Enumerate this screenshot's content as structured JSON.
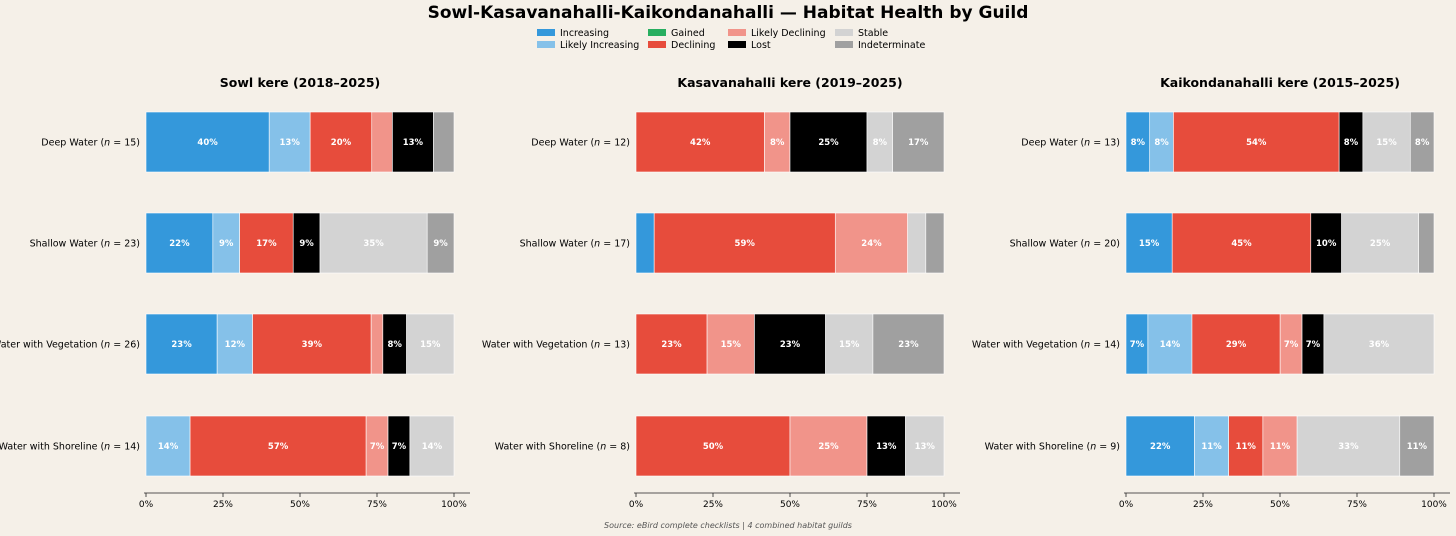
{
  "title": "Sowl-Kasavanahalli-Kaikondanahalli — Habitat Health by Guild",
  "source": "Source: eBird complete checklists  |  4 combined habitat guilds",
  "legend": [
    {
      "key": "increasing",
      "label": "Increasing",
      "color": "#3498db"
    },
    {
      "key": "likely_increasing",
      "label": "Likely Increasing",
      "color": "#85c1e9"
    },
    {
      "key": "gained",
      "label": "Gained",
      "color": "#27ae60"
    },
    {
      "key": "declining",
      "label": "Declining",
      "color": "#e74c3c"
    },
    {
      "key": "likely_declining",
      "label": "Likely Declining",
      "color": "#f1948a"
    },
    {
      "key": "lost",
      "label": "Lost",
      "color": "#000000"
    },
    {
      "key": "stable",
      "label": "Stable",
      "color": "#d3d3d3"
    },
    {
      "key": "indeterminate",
      "label": "Indeterminate",
      "color": "#a0a0a0"
    }
  ],
  "chart_data": {
    "type": "bar",
    "orientation": "horizontal",
    "stacked": true,
    "percent_scale": true,
    "xlim": [
      0,
      100
    ],
    "xticks": [
      "0%",
      "25%",
      "50%",
      "75%",
      "100%"
    ],
    "panels": [
      {
        "title": "Sowl kere (2018–2025)",
        "rows": [
          {
            "label": "Deep Water",
            "n": 15,
            "segments": {
              "increasing": 40,
              "likely_increasing": 13.3,
              "declining": 20,
              "likely_declining": 6.7,
              "lost": 13.3,
              "indeterminate": 6.7
            }
          },
          {
            "label": "Shallow Water",
            "n": 23,
            "segments": {
              "increasing": 21.7,
              "likely_increasing": 8.7,
              "declining": 17.4,
              "lost": 8.7,
              "stable": 34.8,
              "indeterminate": 8.7
            }
          },
          {
            "label": "Water with Vegetation",
            "n": 26,
            "segments": {
              "increasing": 23.1,
              "likely_increasing": 11.5,
              "declining": 38.5,
              "likely_declining": 3.8,
              "lost": 7.7,
              "stable": 15.4
            }
          },
          {
            "label": "Water with Shoreline",
            "n": 14,
            "segments": {
              "likely_increasing": 14.3,
              "declining": 57.1,
              "likely_declining": 7.1,
              "lost": 7.1,
              "stable": 14.3
            }
          }
        ]
      },
      {
        "title": "Kasavanahalli kere (2019–2025)",
        "rows": [
          {
            "label": "Deep Water",
            "n": 12,
            "segments": {
              "declining": 41.7,
              "likely_declining": 8.3,
              "lost": 25,
              "stable": 8.3,
              "indeterminate": 16.7
            }
          },
          {
            "label": "Shallow Water",
            "n": 17,
            "segments": {
              "increasing": 5.9,
              "declining": 58.8,
              "likely_declining": 23.5,
              "stable": 5.9,
              "indeterminate": 5.9
            }
          },
          {
            "label": "Water with Vegetation",
            "n": 13,
            "segments": {
              "declining": 23.1,
              "likely_declining": 15.4,
              "lost": 23.1,
              "stable": 15.4,
              "indeterminate": 23.1
            }
          },
          {
            "label": "Water with Shoreline",
            "n": 8,
            "segments": {
              "declining": 50,
              "likely_declining": 25,
              "lost": 12.5,
              "stable": 12.5
            }
          }
        ]
      },
      {
        "title": "Kaikondanahalli kere (2015–2025)",
        "rows": [
          {
            "label": "Deep Water",
            "n": 13,
            "segments": {
              "increasing": 7.7,
              "likely_increasing": 7.7,
              "declining": 53.8,
              "lost": 7.7,
              "stable": 15.4,
              "indeterminate": 7.7
            }
          },
          {
            "label": "Shallow Water",
            "n": 20,
            "segments": {
              "increasing": 15,
              "declining": 45,
              "lost": 10,
              "stable": 25,
              "indeterminate": 5
            }
          },
          {
            "label": "Water with Vegetation",
            "n": 14,
            "segments": {
              "increasing": 7.1,
              "likely_increasing": 14.3,
              "declining": 28.6,
              "likely_declining": 7.1,
              "lost": 7.1,
              "stable": 35.7
            }
          },
          {
            "label": "Water with Shoreline",
            "n": 9,
            "segments": {
              "increasing": 22.2,
              "likely_increasing": 11.1,
              "declining": 11.1,
              "likely_declining": 11.1,
              "stable": 33.3,
              "indeterminate": 11.1
            }
          }
        ]
      }
    ]
  }
}
